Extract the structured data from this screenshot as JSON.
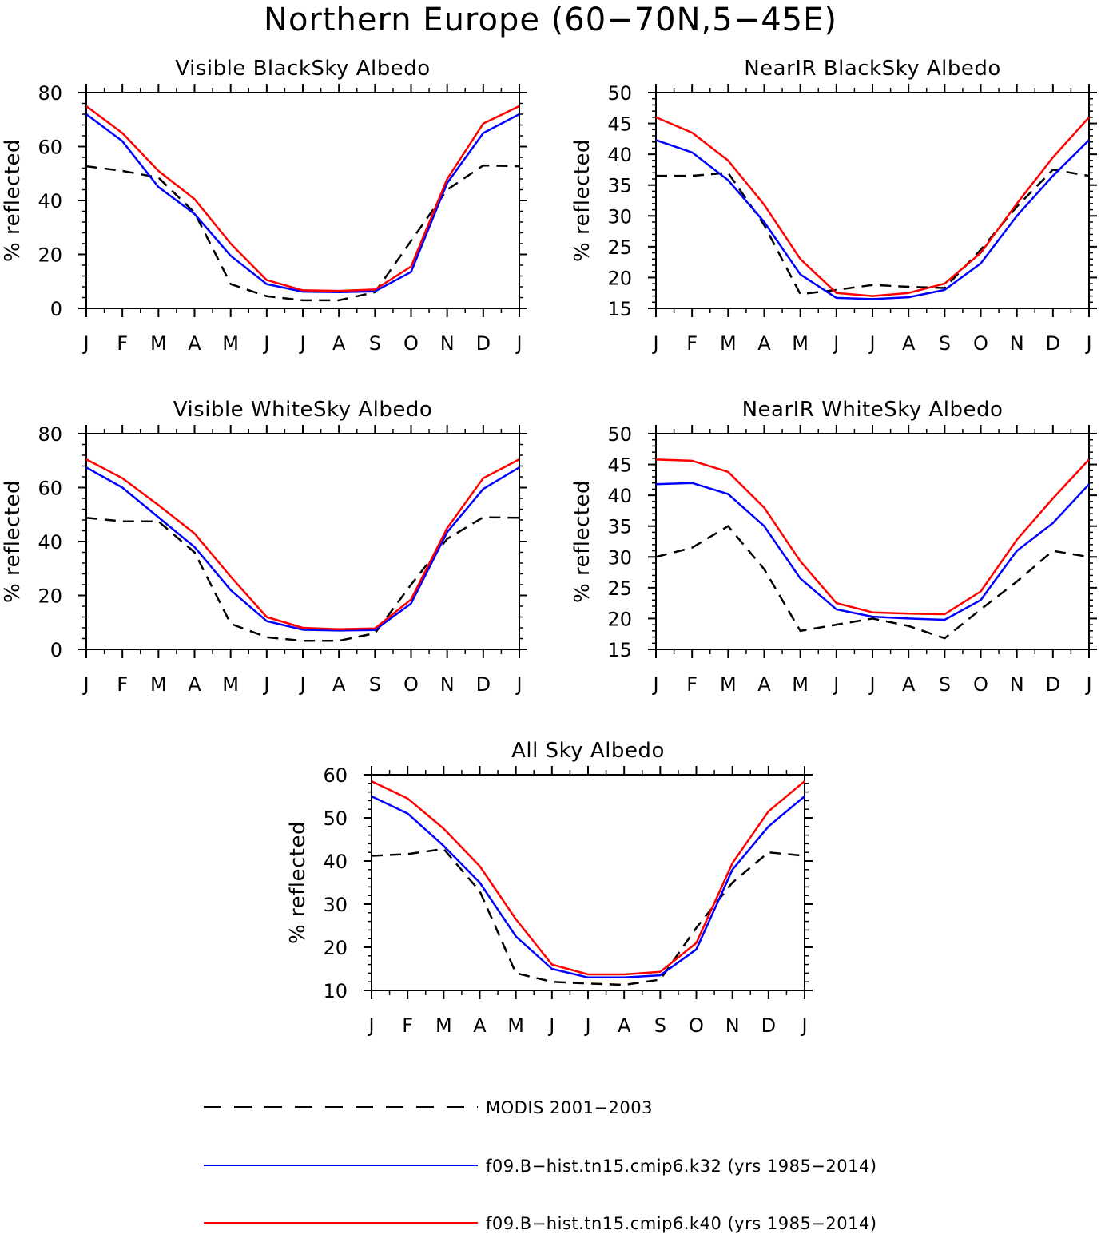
{
  "figure_title": "Northern Europe (60−70N,5−45E)",
  "legend": [
    {
      "label": "MODIS 2001−2003",
      "color": "#000000",
      "dashed": true
    },
    {
      "label": "f09.B−hist.tn15.cmip6.k32 (yrs 1985−2014)",
      "color": "#0000ff",
      "dashed": false
    },
    {
      "label": "f09.B−hist.tn15.cmip6.k40 (yrs 1985−2014)",
      "color": "#ff0000",
      "dashed": false
    }
  ],
  "chart_data": [
    {
      "type": "line",
      "title": "Visible BlackSky Albedo",
      "xlabel": "",
      "ylabel": "% reflected",
      "categories": [
        "J",
        "F",
        "M",
        "A",
        "M",
        "J",
        "J",
        "A",
        "S",
        "O",
        "N",
        "D",
        "J"
      ],
      "ylim": [
        0,
        80
      ],
      "yticks": [
        0,
        20,
        40,
        60,
        80
      ],
      "series": [
        {
          "name": "MODIS 2001−2003",
          "color": "#000000",
          "dashed": true,
          "values": [
            52.7,
            51.0,
            48.5,
            35.5,
            9.0,
            4.5,
            3.0,
            3.0,
            6.0,
            25.0,
            44.0,
            53.0,
            52.7
          ]
        },
        {
          "name": "f09.B−hist.tn15.cmip6.k32 (yrs 1985−2014)",
          "color": "#0000ff",
          "dashed": false,
          "values": [
            72.0,
            62.0,
            45.0,
            35.0,
            19.5,
            9.0,
            6.2,
            6.0,
            6.3,
            13.5,
            46.5,
            65.0,
            72.0
          ]
        },
        {
          "name": "f09.B−hist.tn15.cmip6.k40 (yrs 1985−2014)",
          "color": "#ff0000",
          "dashed": false,
          "values": [
            75.0,
            65.0,
            51.0,
            40.5,
            24.0,
            10.5,
            6.7,
            6.5,
            7.0,
            15.5,
            48.0,
            68.5,
            75.0
          ]
        }
      ]
    },
    {
      "type": "line",
      "title": "NearIR BlackSky Albedo",
      "xlabel": "",
      "ylabel": "% reflected",
      "categories": [
        "J",
        "F",
        "M",
        "A",
        "M",
        "J",
        "J",
        "A",
        "S",
        "O",
        "N",
        "D",
        "J"
      ],
      "ylim": [
        15,
        50
      ],
      "yticks": [
        15,
        20,
        25,
        30,
        35,
        40,
        45,
        50
      ],
      "series": [
        {
          "name": "MODIS 2001−2003",
          "color": "#000000",
          "dashed": true,
          "values": [
            36.5,
            36.5,
            37.0,
            28.5,
            17.3,
            18.0,
            18.8,
            18.5,
            18.3,
            24.5,
            31.5,
            37.5,
            36.5
          ]
        },
        {
          "name": "f09.B−hist.tn15.cmip6.k32 (yrs 1985−2014)",
          "color": "#0000ff",
          "dashed": false,
          "values": [
            42.3,
            40.3,
            35.8,
            29.0,
            20.5,
            16.7,
            16.5,
            16.8,
            18.0,
            22.3,
            30.0,
            36.5,
            42.3
          ]
        },
        {
          "name": "f09.B−hist.tn15.cmip6.k40 (yrs 1985−2014)",
          "color": "#ff0000",
          "dashed": false,
          "values": [
            46.0,
            43.5,
            39.0,
            31.8,
            23.0,
            17.5,
            17.0,
            17.5,
            19.0,
            24.0,
            32.0,
            39.5,
            46.0
          ]
        }
      ]
    },
    {
      "type": "line",
      "title": "Visible WhiteSky Albedo",
      "xlabel": "",
      "ylabel": "% reflected",
      "categories": [
        "J",
        "F",
        "M",
        "A",
        "M",
        "J",
        "J",
        "A",
        "S",
        "O",
        "N",
        "D",
        "J"
      ],
      "ylim": [
        0,
        80
      ],
      "yticks": [
        0,
        20,
        40,
        60,
        80
      ],
      "series": [
        {
          "name": "MODIS 2001−2003",
          "color": "#000000",
          "dashed": true,
          "values": [
            48.8,
            47.5,
            47.5,
            36.0,
            9.5,
            4.5,
            3.2,
            3.2,
            6.0,
            24.0,
            41.0,
            49.0,
            48.8
          ]
        },
        {
          "name": "f09.B−hist.tn15.cmip6.k32 (yrs 1985−2014)",
          "color": "#0000ff",
          "dashed": false,
          "values": [
            67.5,
            60.0,
            49.0,
            38.0,
            22.0,
            10.5,
            7.3,
            7.0,
            7.2,
            17.0,
            43.5,
            59.5,
            67.5
          ]
        },
        {
          "name": "f09.B−hist.tn15.cmip6.k40 (yrs 1985−2014)",
          "color": "#ff0000",
          "dashed": false,
          "values": [
            70.5,
            63.5,
            53.5,
            43.0,
            27.0,
            12.0,
            8.0,
            7.5,
            7.8,
            18.5,
            45.0,
            63.5,
            70.5
          ]
        }
      ]
    },
    {
      "type": "line",
      "title": "NearIR WhiteSky Albedo",
      "xlabel": "",
      "ylabel": "% reflected",
      "categories": [
        "J",
        "F",
        "M",
        "A",
        "M",
        "J",
        "J",
        "A",
        "S",
        "O",
        "N",
        "D",
        "J"
      ],
      "ylim": [
        15,
        50
      ],
      "yticks": [
        15,
        20,
        25,
        30,
        35,
        40,
        45,
        50
      ],
      "series": [
        {
          "name": "MODIS 2001−2003",
          "color": "#000000",
          "dashed": true,
          "values": [
            30.0,
            31.5,
            35.0,
            28.0,
            18.0,
            19.0,
            20.0,
            18.8,
            16.8,
            21.5,
            26.0,
            31.0,
            30.0
          ]
        },
        {
          "name": "f09.B−hist.tn15.cmip6.k32 (yrs 1985−2014)",
          "color": "#0000ff",
          "dashed": false,
          "values": [
            41.8,
            42.0,
            40.2,
            35.0,
            26.5,
            21.5,
            20.3,
            20.0,
            19.8,
            23.0,
            31.0,
            35.5,
            41.8
          ]
        },
        {
          "name": "f09.B−hist.tn15.cmip6.k40 (yrs 1985−2014)",
          "color": "#ff0000",
          "dashed": false,
          "values": [
            45.8,
            45.6,
            43.8,
            38.0,
            29.3,
            22.5,
            21.0,
            20.8,
            20.7,
            24.4,
            32.8,
            39.5,
            45.8
          ]
        }
      ]
    },
    {
      "type": "line",
      "title": "All Sky Albedo",
      "xlabel": "",
      "ylabel": "% reflected",
      "categories": [
        "J",
        "F",
        "M",
        "A",
        "M",
        "J",
        "J",
        "A",
        "S",
        "O",
        "N",
        "D",
        "J"
      ],
      "ylim": [
        10,
        60
      ],
      "yticks": [
        10,
        20,
        30,
        40,
        50,
        60
      ],
      "series": [
        {
          "name": "MODIS 2001−2003",
          "color": "#000000",
          "dashed": true,
          "values": [
            41.2,
            41.6,
            42.8,
            33.0,
            14.0,
            12.0,
            11.6,
            11.3,
            12.5,
            24.5,
            35.0,
            42.0,
            41.2
          ]
        },
        {
          "name": "f09.B−hist.tn15.cmip6.k32 (yrs 1985−2014)",
          "color": "#0000ff",
          "dashed": false,
          "values": [
            55.0,
            51.0,
            43.5,
            35.0,
            22.5,
            15.0,
            13.0,
            13.0,
            13.5,
            19.5,
            38.0,
            48.0,
            55.0
          ]
        },
        {
          "name": "f09.B−hist.tn15.cmip6.k40 (yrs 1985−2014)",
          "color": "#ff0000",
          "dashed": false,
          "values": [
            58.5,
            54.5,
            47.5,
            38.8,
            26.5,
            16.0,
            13.7,
            13.7,
            14.3,
            21.0,
            39.5,
            51.5,
            58.5
          ]
        }
      ]
    }
  ]
}
